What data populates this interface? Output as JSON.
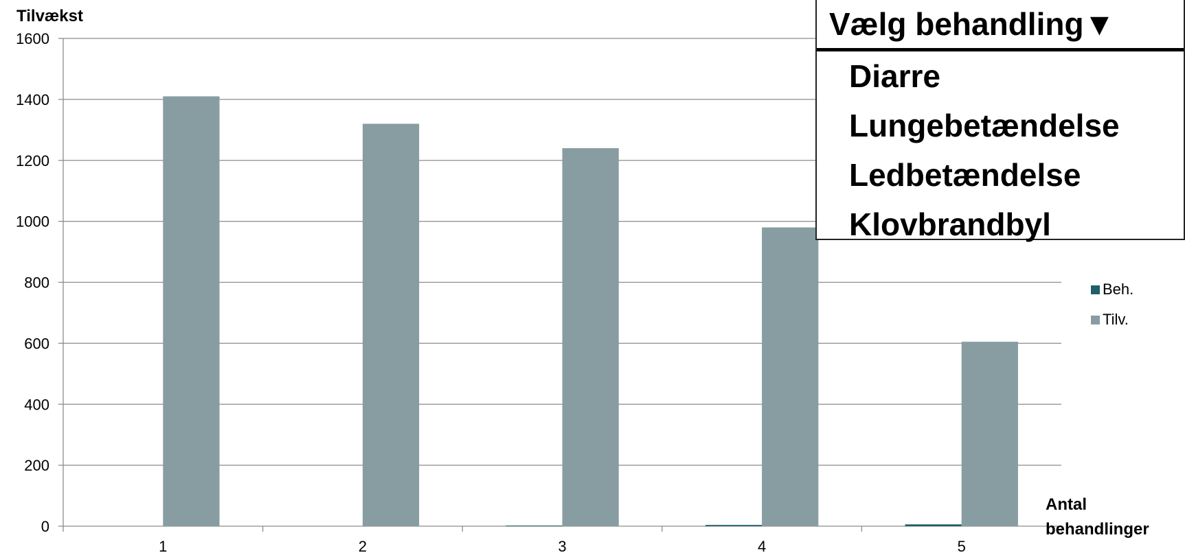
{
  "chart_data": {
    "type": "bar",
    "ylabel": "Tilvækst",
    "xlabel_lines": [
      "Antal",
      "behandlinger"
    ],
    "categories": [
      "1",
      "2",
      "3",
      "4",
      "5"
    ],
    "ylim": [
      0,
      1600
    ],
    "yticks": [
      0,
      200,
      400,
      600,
      800,
      1000,
      1200,
      1400,
      1600
    ],
    "grid": true,
    "legend_position": "right",
    "series": [
      {
        "name": "Beh.",
        "color": "#1f5f6b",
        "values": [
          0,
          0,
          2,
          4,
          6
        ]
      },
      {
        "name": "Tilv.",
        "color": "#879da2",
        "values": [
          1410,
          1320,
          1240,
          980,
          605
        ]
      }
    ]
  },
  "dropdown": {
    "label": "Vælg behandling",
    "arrow": "▼",
    "options": [
      "Diarre",
      "Lungebetændelse",
      "Ledbetændelse",
      "Klovbrandbyl"
    ]
  }
}
